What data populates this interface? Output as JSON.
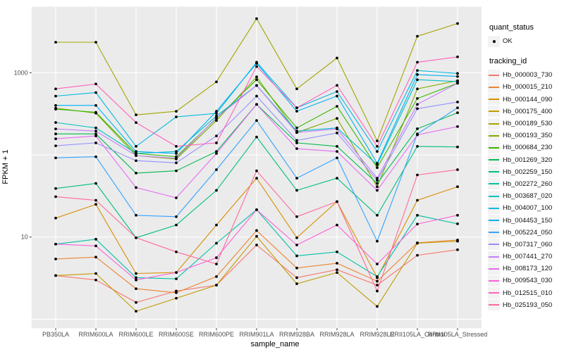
{
  "colors": {
    "page_bg": "#FFFFFF",
    "panel_bg": "#EBEBEB",
    "grid": "#FFFFFF",
    "axis_text": "#4D4D4D",
    "tick_mark": "#333333",
    "point": "#000000",
    "legend_key_bg": "#F2F2F2"
  },
  "legend": {
    "quant_status_title": "quant_status",
    "quant_status_items": [
      {
        "label": "OK",
        "marker": "black-point-icon"
      }
    ],
    "tracking_title": "tracking_id"
  },
  "chart_data": {
    "type": "line",
    "title": "",
    "xlabel": "sample_name",
    "ylabel": "FPKM + 1",
    "y_scale": "log10",
    "ylim": [
      0.8,
      6500
    ],
    "grid": "on",
    "legend_position": "right",
    "y_tick_labels": [
      "1000",
      "10"
    ],
    "y_gridline_values": [
      1,
      10,
      100,
      1000
    ],
    "point_marker": "black filled point at every vertex",
    "categories": [
      "PB350LA",
      "RRIM600LA",
      "RRIM600LE",
      "RRIM600SE",
      "RRIM600PE",
      "RRIM901LA",
      "RRIM928BA",
      "RRIM928LA",
      "RRIM928LE",
      "RRII105LA_Control",
      "RRII105LA_Stressed"
    ],
    "series": [
      {
        "name": "Hb_000003_730",
        "color": "#F8766D",
        "values": [
          3.4,
          3.0,
          1.6,
          2.2,
          2.6,
          8.0,
          3.2,
          4.0,
          2.6,
          6.0,
          7.0
        ]
      },
      {
        "name": "Hb_000015_210",
        "color": "#EA8331",
        "values": [
          5.4,
          5.7,
          2.35,
          2.1,
          3.3,
          12.0,
          4.2,
          4.8,
          2.9,
          8.5,
          9.2
        ]
      },
      {
        "name": "Hb_000144_090",
        "color": "#D89000",
        "values": [
          17,
          25,
          3.6,
          3.7,
          14,
          52,
          9.8,
          27,
          3.2,
          28,
          41
        ]
      },
      {
        "name": "Hb_000175_400",
        "color": "#C09B00",
        "values": [
          3.4,
          3.6,
          1.25,
          1.8,
          2.6,
          10.2,
          2.7,
          3.7,
          1.43,
          8.4,
          8.9
        ]
      },
      {
        "name": "Hb_000189_530",
        "color": "#A3A500",
        "values": [
          2350,
          2350,
          307,
          339,
          775,
          4550,
          636,
          1510,
          148,
          2780,
          3970
        ]
      },
      {
        "name": "Hb_000193_350",
        "color": "#7CAE00",
        "values": [
          370,
          322,
          98,
          89,
          262,
          890,
          187,
          278,
          41,
          636,
          800
        ]
      },
      {
        "name": "Hb_000684_230",
        "color": "#39B600",
        "values": [
          360,
          330,
          104,
          95,
          278,
          822,
          213,
          390,
          70,
          486,
          745
        ]
      },
      {
        "name": "Hb_001269_320",
        "color": "#00BB4E",
        "values": [
          180,
          180,
          60,
          64,
          110,
          412,
          140,
          127,
          45,
          208,
          326
        ]
      },
      {
        "name": "Hb_002259_150",
        "color": "#00BF7D",
        "values": [
          39,
          45,
          9.8,
          14,
          37,
          165,
          37,
          52,
          18.4,
          127,
          125
        ]
      },
      {
        "name": "Hb_002272_260",
        "color": "#00C1A3",
        "values": [
          8.2,
          9.4,
          3.2,
          3.1,
          8.4,
          21.5,
          5.9,
          6.6,
          3.3,
          18.4,
          14.5
        ]
      },
      {
        "name": "Hb_003687_020",
        "color": "#00BFC4",
        "values": [
          248,
          213,
          104,
          110,
          298,
          700,
          195,
          213,
          76,
          822,
          780
        ]
      },
      {
        "name": "Hb_004007_100",
        "color": "#00BAE0",
        "values": [
          519,
          573,
          127,
          290,
          320,
          1343,
          374,
          590,
          110,
          1064,
          980
        ]
      },
      {
        "name": "Hb_004453_150",
        "color": "#00B0F6",
        "values": [
          400,
          400,
          110,
          104,
          340,
          1300,
          340,
          520,
          79,
          950,
          900
        ]
      },
      {
        "name": "Hb_005224_050",
        "color": "#35A2FF",
        "values": [
          92,
          95,
          18.4,
          17.7,
          66,
          262,
          52,
          92,
          8.9,
          180,
          374
        ]
      },
      {
        "name": "Hb_007317_060",
        "color": "#9590FF",
        "values": [
          129,
          140,
          85,
          80,
          170,
          519,
          150,
          185,
          49,
          365,
          440
        ]
      },
      {
        "name": "Hb_007441_270",
        "color": "#C77CFF",
        "values": [
          207,
          195,
          98,
          91,
          283,
          700,
          187,
          207,
          52,
          412,
          745
        ]
      },
      {
        "name": "Hb_008173_120",
        "color": "#E76BF3",
        "values": [
          157,
          170,
          40,
          30,
          104,
          412,
          119,
          110,
          37,
          175,
          221
        ]
      },
      {
        "name": "Hb_009543_030",
        "color": "#FA62DB",
        "values": [
          8.2,
          7.8,
          3.0,
          3.7,
          5.6,
          21.5,
          8.0,
          14.0,
          4.7,
          14.4,
          18.4
        ]
      },
      {
        "name": "Hb_012515_010",
        "color": "#FF62BC",
        "values": [
          636,
          730,
          247,
          127,
          140,
          1190,
          374,
          702,
          127,
          1343,
          1560
        ]
      },
      {
        "name": "Hb_025193_050",
        "color": "#FF6A98",
        "values": [
          31,
          28,
          9.8,
          6.6,
          4.7,
          64,
          17.7,
          27,
          2.2,
          57,
          66
        ]
      }
    ]
  }
}
